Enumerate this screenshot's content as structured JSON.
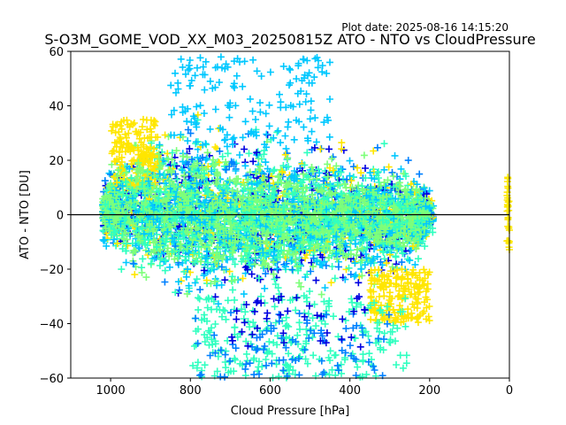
{
  "chart_data": {
    "type": "scatter",
    "title": "S-O3M_GOME_VOD_XX_M03_20250815Z ATO - NTO vs CloudPressure",
    "subtitle": "Plot date: 2025-08-16 14:15:20",
    "xlabel": "Cloud Pressure [hPa]",
    "ylabel": "ATO - NTO [DU]",
    "xlim": [
      1100,
      0
    ],
    "ylim": [
      -60,
      60
    ],
    "x_ticks": [
      1000,
      800,
      600,
      400,
      200,
      0
    ],
    "y_ticks": [
      -60,
      -40,
      -20,
      0,
      20,
      40,
      60
    ],
    "x_tick_labels": [
      "1000",
      "800",
      "600",
      "400",
      "200",
      "0"
    ],
    "y_tick_labels": [
      "−60",
      "−40",
      "−20",
      "0",
      "20",
      "40",
      "60"
    ],
    "reference_line_y": 0,
    "grid": false,
    "marker": "+",
    "series_colors": [
      "#0000e0",
      "#0080ff",
      "#00c8ff",
      "#30ffc0",
      "#7dff7a",
      "#d4ff30",
      "#ffe600"
    ],
    "core_envelope": [
      {
        "x": 1020,
        "y_low": -10,
        "y_high": 12
      },
      {
        "x": 960,
        "y_low": -20,
        "y_high": 25
      },
      {
        "x": 900,
        "y_low": -25,
        "y_high": 28
      },
      {
        "x": 800,
        "y_low": -28,
        "y_high": 30
      },
      {
        "x": 700,
        "y_low": -30,
        "y_high": 28
      },
      {
        "x": 600,
        "y_low": -28,
        "y_high": 26
      },
      {
        "x": 500,
        "y_low": -26,
        "y_high": 24
      },
      {
        "x": 400,
        "y_low": -24,
        "y_high": 22
      },
      {
        "x": 300,
        "y_low": -22,
        "y_high": 20
      },
      {
        "x": 230,
        "y_low": -18,
        "y_high": 16
      },
      {
        "x": 200,
        "y_low": -8,
        "y_high": 8
      }
    ],
    "clusters": [
      {
        "x_range": [
          1000,
          880
        ],
        "y_range": [
          10,
          35
        ],
        "color": "#ffe600",
        "count": 180
      },
      {
        "x_range": [
          350,
          200
        ],
        "y_range": [
          -40,
          -20
        ],
        "color": "#ffe600",
        "count": 200
      },
      {
        "x_range": [
          850,
          450
        ],
        "y_range": [
          25,
          58
        ],
        "color": "#00c8ff",
        "count": 160
      },
      {
        "x_range": [
          800,
          250
        ],
        "y_range": [
          -60,
          -30
        ],
        "color": "#30ffc0",
        "count": 260
      },
      {
        "x_range": [
          800,
          300
        ],
        "y_range": [
          -60,
          -35
        ],
        "color": "#0080ff",
        "count": 90
      },
      {
        "x_range": [
          700,
          350
        ],
        "y_range": [
          -50,
          -30
        ],
        "color": "#0000e0",
        "count": 40
      },
      {
        "x_range": [
          6,
          0
        ],
        "y_range": [
          -14,
          15
        ],
        "color": "#ffe600",
        "count": 30
      }
    ]
  }
}
